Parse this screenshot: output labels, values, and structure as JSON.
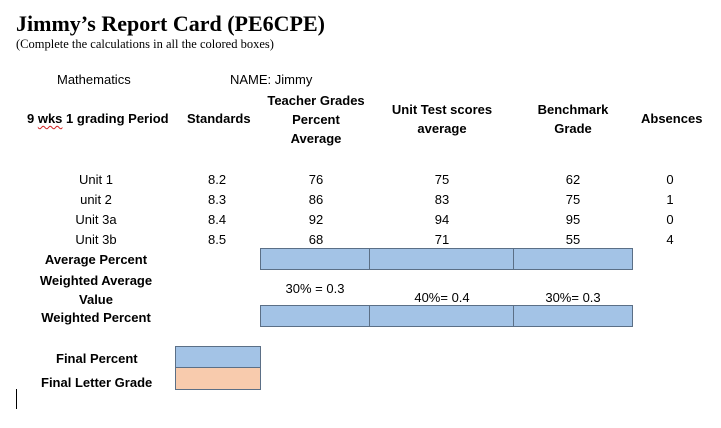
{
  "title": "Jimmy’s Report Card (PE6CPE)",
  "subtitle": "(Complete the calculations in all the colored boxes)",
  "subject": "Mathematics",
  "name_label": "NAME:  Jimmy",
  "headers": {
    "period_prefix": "9 ",
    "period_squiggle": "wks",
    "period_suffix": " 1 grading Period",
    "standards": "Standards",
    "teacher_line1": "Teacher Grades",
    "teacher_line2": "Percent",
    "teacher_line3": "Average",
    "unit_test_line1": "Unit Test scores",
    "unit_test_line2": "average",
    "benchmark_line1": "Benchmark",
    "benchmark_line2": "Grade",
    "absences": "Absences"
  },
  "rows": [
    {
      "unit": "Unit 1",
      "standard": "8.2",
      "teacher": "76",
      "unit_test": "75",
      "benchmark": "62",
      "absences": "0"
    },
    {
      "unit": "unit 2",
      "standard": "8.3",
      "teacher": "86",
      "unit_test": "83",
      "benchmark": "75",
      "absences": "1"
    },
    {
      "unit": "Unit 3a",
      "standard": "8.4",
      "teacher": "92",
      "unit_test": "94",
      "benchmark": "95",
      "absences": "0"
    },
    {
      "unit": "Unit 3b",
      "standard": "8.5",
      "teacher": "68",
      "unit_test": "71",
      "benchmark": "55",
      "absences": "4"
    }
  ],
  "labels": {
    "average_percent": "Average Percent",
    "weighted_avg_line1": "Weighted Average",
    "weighted_avg_line2": "Value",
    "weighted_percent": "Weighted Percent",
    "final_percent": "Final Percent",
    "final_letter": "Final Letter Grade"
  },
  "weights": {
    "teacher": "30% = 0.3",
    "unit_test": "40%= 0.4",
    "benchmark": "30%= 0.3"
  },
  "colors": {
    "blue_box": "#a3c3e6",
    "peach_box": "#f8cbad",
    "squiggle": "#d02020"
  }
}
